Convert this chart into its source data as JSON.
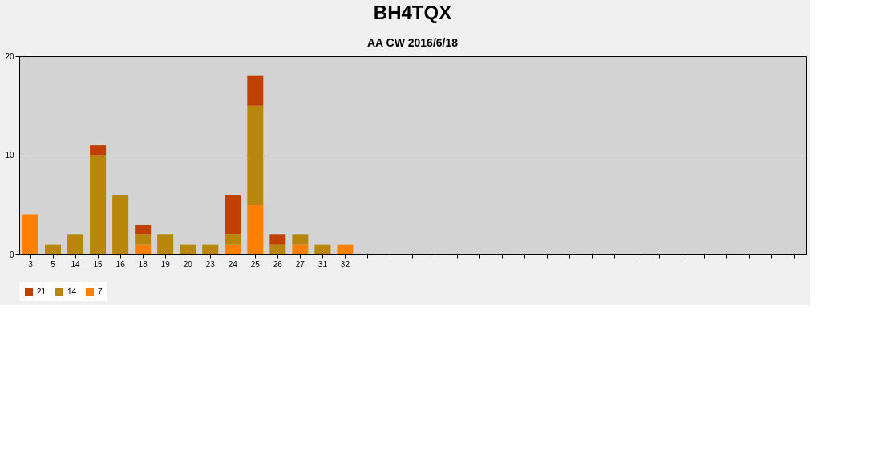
{
  "chart_data": {
    "type": "bar",
    "title": "BH4TQX",
    "subtitle": "AA CW 2016/6/18",
    "categories": [
      "3",
      "5",
      "14",
      "15",
      "16",
      "18",
      "19",
      "20",
      "23",
      "24",
      "25",
      "26",
      "27",
      "31",
      "32",
      null,
      null,
      null,
      null,
      null,
      null,
      null,
      null,
      null,
      null,
      null,
      null,
      null,
      null,
      null,
      null,
      null,
      null,
      null,
      null
    ],
    "stacked": true,
    "series": [
      {
        "name": "7",
        "color": "#ff8000",
        "values": [
          4,
          null,
          null,
          null,
          null,
          1,
          null,
          null,
          null,
          1,
          5,
          null,
          1,
          null,
          1,
          null,
          null,
          null,
          null,
          null,
          null,
          null,
          null,
          null,
          null,
          null,
          null,
          null,
          null,
          null,
          null,
          null,
          null,
          null,
          null
        ]
      },
      {
        "name": "14",
        "color": "#b8860b",
        "values": [
          null,
          1,
          2,
          10,
          6,
          1,
          2,
          1,
          1,
          1,
          10,
          1,
          1,
          1,
          null,
          null,
          null,
          null,
          null,
          null,
          null,
          null,
          null,
          null,
          null,
          null,
          null,
          null,
          null,
          null,
          null,
          null,
          null,
          null,
          null
        ]
      },
      {
        "name": "21",
        "color": "#c04000",
        "values": [
          null,
          null,
          null,
          1,
          null,
          1,
          null,
          null,
          null,
          4,
          3,
          1,
          null,
          null,
          null,
          null,
          null,
          null,
          null,
          null,
          null,
          null,
          null,
          null,
          null,
          null,
          null,
          null,
          null,
          null,
          null,
          null,
          null,
          null,
          null
        ]
      }
    ],
    "ylim": [
      0,
      20
    ],
    "yticks": [
      0,
      10,
      20
    ],
    "grid": "y",
    "legend": "bottom left"
  }
}
